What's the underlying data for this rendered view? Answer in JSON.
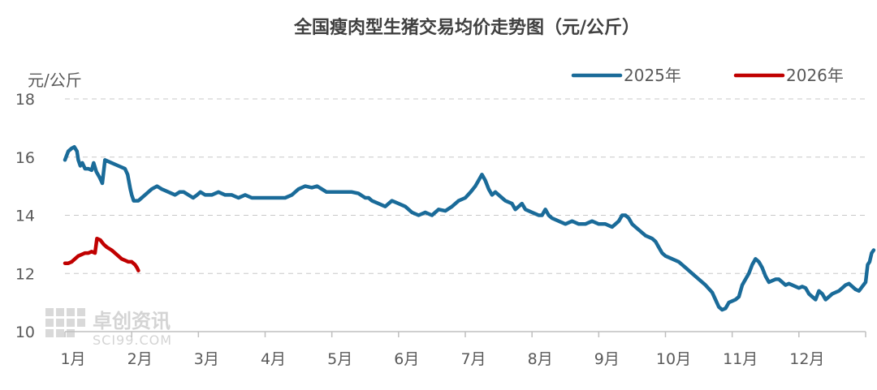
{
  "chart_data": {
    "type": "line",
    "title": "全国瘦肉型生猪交易均价走势图（元/公斤）",
    "ylabel": "元/公斤",
    "xlabel": "",
    "ylim": [
      10,
      18
    ],
    "yticks": [
      "18",
      "16",
      "14",
      "12",
      "10"
    ],
    "xticks": [
      "1月",
      "2月",
      "3月",
      "4月",
      "5月",
      "6月",
      "7月",
      "8月",
      "9月",
      "10月",
      "11月",
      "12月"
    ],
    "grid": "horizontal-dashed",
    "legend_position": "top-right",
    "watermark": {
      "main": "卓创资讯",
      "sub": "SCI99.COM"
    },
    "colors": {
      "s2025": "#1a6b99",
      "s2026": "#c00000",
      "grid": "#c8c8c8",
      "axis": "#bfbfbf",
      "text": "#595959"
    },
    "series": [
      {
        "name": "2025年",
        "points": [
          [
            0.0,
            15.9
          ],
          [
            0.05,
            16.2
          ],
          [
            0.1,
            16.3
          ],
          [
            0.14,
            16.35
          ],
          [
            0.18,
            16.2
          ],
          [
            0.2,
            15.9
          ],
          [
            0.23,
            15.7
          ],
          [
            0.26,
            15.8
          ],
          [
            0.3,
            15.6
          ],
          [
            0.35,
            15.6
          ],
          [
            0.4,
            15.55
          ],
          [
            0.43,
            15.8
          ],
          [
            0.47,
            15.5
          ],
          [
            0.52,
            15.3
          ],
          [
            0.56,
            15.1
          ],
          [
            0.6,
            15.9
          ],
          [
            0.7,
            15.8
          ],
          [
            0.8,
            15.7
          ],
          [
            0.9,
            15.6
          ],
          [
            0.94,
            15.4
          ],
          [
            0.98,
            14.9
          ],
          [
            1.0,
            14.7
          ],
          [
            1.03,
            14.5
          ],
          [
            1.1,
            14.5
          ],
          [
            1.15,
            14.6
          ],
          [
            1.2,
            14.7
          ],
          [
            1.3,
            14.9
          ],
          [
            1.38,
            15.0
          ],
          [
            1.45,
            14.9
          ],
          [
            1.55,
            14.8
          ],
          [
            1.65,
            14.7
          ],
          [
            1.72,
            14.8
          ],
          [
            1.78,
            14.8
          ],
          [
            1.85,
            14.7
          ],
          [
            1.92,
            14.6
          ],
          [
            1.98,
            14.7
          ],
          [
            2.03,
            14.8
          ],
          [
            2.1,
            14.7
          ],
          [
            2.2,
            14.7
          ],
          [
            2.3,
            14.8
          ],
          [
            2.4,
            14.7
          ],
          [
            2.5,
            14.7
          ],
          [
            2.6,
            14.6
          ],
          [
            2.7,
            14.7
          ],
          [
            2.8,
            14.6
          ],
          [
            2.9,
            14.6
          ],
          [
            3.0,
            14.6
          ],
          [
            3.1,
            14.6
          ],
          [
            3.2,
            14.6
          ],
          [
            3.3,
            14.6
          ],
          [
            3.4,
            14.7
          ],
          [
            3.5,
            14.9
          ],
          [
            3.6,
            15.0
          ],
          [
            3.7,
            14.95
          ],
          [
            3.78,
            15.0
          ],
          [
            3.85,
            14.9
          ],
          [
            3.92,
            14.8
          ],
          [
            4.0,
            14.8
          ],
          [
            4.1,
            14.8
          ],
          [
            4.2,
            14.8
          ],
          [
            4.3,
            14.8
          ],
          [
            4.4,
            14.75
          ],
          [
            4.5,
            14.6
          ],
          [
            4.55,
            14.6
          ],
          [
            4.6,
            14.5
          ],
          [
            4.7,
            14.4
          ],
          [
            4.8,
            14.3
          ],
          [
            4.9,
            14.5
          ],
          [
            5.0,
            14.4
          ],
          [
            5.1,
            14.3
          ],
          [
            5.2,
            14.1
          ],
          [
            5.3,
            14.0
          ],
          [
            5.4,
            14.1
          ],
          [
            5.5,
            14.0
          ],
          [
            5.6,
            14.2
          ],
          [
            5.7,
            14.15
          ],
          [
            5.8,
            14.3
          ],
          [
            5.9,
            14.5
          ],
          [
            6.0,
            14.6
          ],
          [
            6.08,
            14.8
          ],
          [
            6.15,
            15.0
          ],
          [
            6.2,
            15.2
          ],
          [
            6.25,
            15.4
          ],
          [
            6.3,
            15.2
          ],
          [
            6.35,
            14.9
          ],
          [
            6.4,
            14.7
          ],
          [
            6.45,
            14.8
          ],
          [
            6.5,
            14.7
          ],
          [
            6.55,
            14.6
          ],
          [
            6.6,
            14.5
          ],
          [
            6.7,
            14.4
          ],
          [
            6.75,
            14.2
          ],
          [
            6.8,
            14.3
          ],
          [
            6.85,
            14.4
          ],
          [
            6.9,
            14.2
          ],
          [
            7.0,
            14.1
          ],
          [
            7.05,
            14.05
          ],
          [
            7.1,
            14.0
          ],
          [
            7.15,
            14.0
          ],
          [
            7.2,
            14.2
          ],
          [
            7.25,
            14.0
          ],
          [
            7.3,
            13.9
          ],
          [
            7.4,
            13.8
          ],
          [
            7.5,
            13.7
          ],
          [
            7.6,
            13.8
          ],
          [
            7.7,
            13.7
          ],
          [
            7.8,
            13.7
          ],
          [
            7.9,
            13.8
          ],
          [
            8.0,
            13.7
          ],
          [
            8.1,
            13.7
          ],
          [
            8.2,
            13.6
          ],
          [
            8.3,
            13.8
          ],
          [
            8.35,
            14.0
          ],
          [
            8.4,
            14.0
          ],
          [
            8.45,
            13.9
          ],
          [
            8.5,
            13.7
          ],
          [
            8.55,
            13.6
          ],
          [
            8.6,
            13.5
          ],
          [
            8.7,
            13.3
          ],
          [
            8.8,
            13.2
          ],
          [
            8.85,
            13.1
          ],
          [
            8.9,
            12.9
          ],
          [
            8.95,
            12.7
          ],
          [
            9.0,
            12.6
          ],
          [
            9.1,
            12.5
          ],
          [
            9.2,
            12.4
          ],
          [
            9.3,
            12.2
          ],
          [
            9.4,
            12.0
          ],
          [
            9.5,
            11.8
          ],
          [
            9.6,
            11.6
          ],
          [
            9.7,
            11.35
          ],
          [
            9.75,
            11.1
          ],
          [
            9.8,
            10.85
          ],
          [
            9.85,
            10.75
          ],
          [
            9.9,
            10.8
          ],
          [
            9.95,
            11.0
          ],
          [
            10.0,
            11.05
          ],
          [
            10.05,
            11.1
          ],
          [
            10.1,
            11.2
          ],
          [
            10.15,
            11.6
          ],
          [
            10.2,
            11.8
          ],
          [
            10.25,
            12.0
          ],
          [
            10.3,
            12.3
          ],
          [
            10.35,
            12.5
          ],
          [
            10.4,
            12.4
          ],
          [
            10.45,
            12.2
          ],
          [
            10.5,
            11.9
          ],
          [
            10.55,
            11.7
          ],
          [
            10.6,
            11.75
          ],
          [
            10.65,
            11.8
          ],
          [
            10.7,
            11.8
          ],
          [
            10.75,
            11.7
          ],
          [
            10.8,
            11.6
          ],
          [
            10.85,
            11.65
          ],
          [
            10.9,
            11.6
          ],
          [
            11.0,
            11.5
          ],
          [
            11.05,
            11.55
          ],
          [
            11.1,
            11.5
          ],
          [
            11.15,
            11.3
          ],
          [
            11.2,
            11.2
          ],
          [
            11.25,
            11.1
          ],
          [
            11.3,
            11.4
          ],
          [
            11.35,
            11.3
          ],
          [
            11.4,
            11.1
          ],
          [
            11.45,
            11.2
          ],
          [
            11.5,
            11.3
          ],
          [
            11.55,
            11.35
          ],
          [
            11.6,
            11.4
          ],
          [
            11.65,
            11.5
          ],
          [
            11.7,
            11.6
          ],
          [
            11.75,
            11.65
          ],
          [
            11.8,
            11.55
          ],
          [
            11.85,
            11.45
          ],
          [
            11.9,
            11.4
          ],
          [
            11.95,
            11.55
          ],
          [
            12.0,
            11.7
          ],
          [
            12.03,
            12.3
          ],
          [
            12.06,
            12.4
          ],
          [
            12.09,
            12.7
          ],
          [
            12.12,
            12.8
          ]
        ]
      },
      {
        "name": "2026年",
        "points": [
          [
            0.0,
            12.35
          ],
          [
            0.05,
            12.35
          ],
          [
            0.1,
            12.4
          ],
          [
            0.15,
            12.5
          ],
          [
            0.2,
            12.6
          ],
          [
            0.25,
            12.65
          ],
          [
            0.3,
            12.7
          ],
          [
            0.35,
            12.7
          ],
          [
            0.4,
            12.75
          ],
          [
            0.45,
            12.7
          ],
          [
            0.48,
            13.2
          ],
          [
            0.53,
            13.15
          ],
          [
            0.58,
            13.0
          ],
          [
            0.63,
            12.9
          ],
          [
            0.7,
            12.8
          ],
          [
            0.75,
            12.7
          ],
          [
            0.8,
            12.6
          ],
          [
            0.85,
            12.5
          ],
          [
            0.9,
            12.45
          ],
          [
            0.95,
            12.4
          ],
          [
            1.0,
            12.4
          ],
          [
            1.05,
            12.3
          ],
          [
            1.08,
            12.2
          ],
          [
            1.1,
            12.1
          ]
        ]
      }
    ]
  }
}
